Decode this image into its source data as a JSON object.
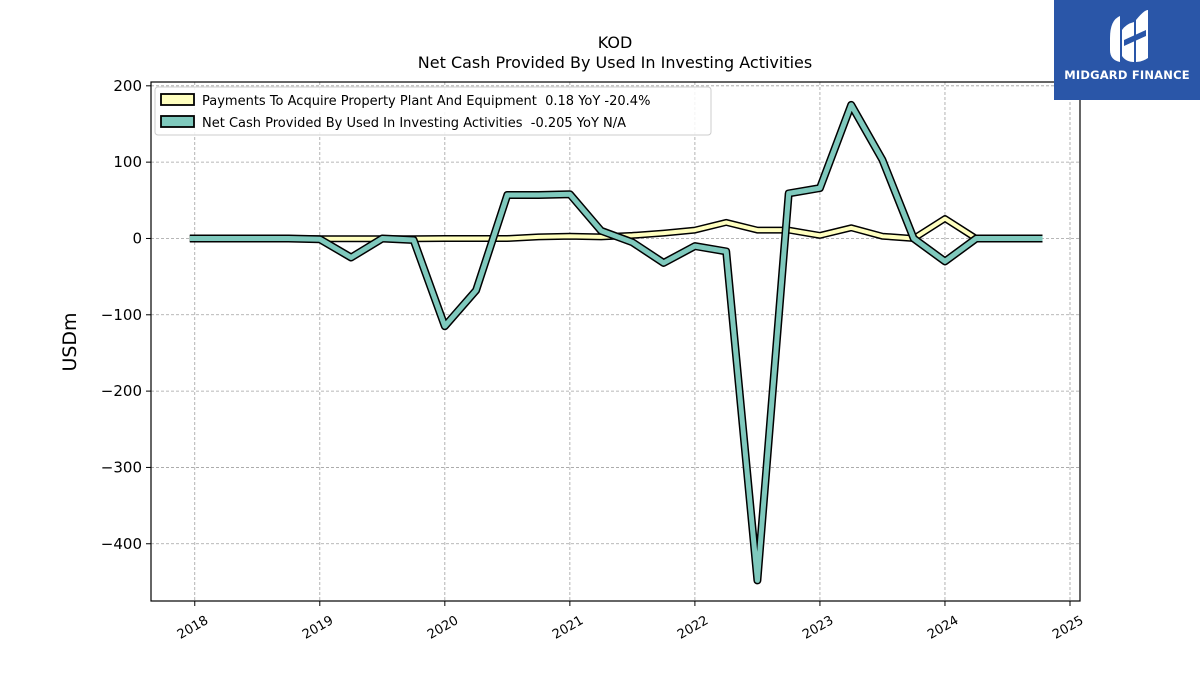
{
  "header": {
    "ticker": "KOD",
    "subtitle": "Net Cash Provided By Used In Investing Activities"
  },
  "logo": {
    "text": "MIDGARD FINANCE",
    "bg_color": "#2a56a8"
  },
  "chart_data": {
    "type": "line",
    "title": "KOD",
    "subtitle": "Net Cash Provided By Used In Investing Activities",
    "ylabel": "USDm",
    "xlabel": "",
    "ylim": [
      -475,
      205
    ],
    "xlim": [
      2017.65,
      2025.08
    ],
    "yticks": [
      200,
      100,
      0,
      -100,
      -200,
      -300,
      -400
    ],
    "ytick_labels": [
      "200",
      "100",
      "0",
      "−100",
      "−200",
      "−300",
      "−400"
    ],
    "xticks": [
      2018,
      2019,
      2020,
      2021,
      2022,
      2023,
      2024,
      2025
    ],
    "xtick_labels": [
      "2018",
      "2019",
      "2020",
      "2021",
      "2022",
      "2023",
      "2024",
      "2025"
    ],
    "grid": true,
    "legend_position": "top-left",
    "series": [
      {
        "name": "Payments To Acquire Property Plant And Equipment  0.18 YoY -20.4%",
        "color": "#ffffbf",
        "x": [
          2017.96,
          2018.75,
          2019.0,
          2019.25,
          2019.5,
          2019.75,
          2020.0,
          2020.25,
          2020.5,
          2020.75,
          2021.0,
          2021.25,
          2021.5,
          2021.75,
          2022.0,
          2022.25,
          2022.5,
          2022.75,
          2023.0,
          2023.25,
          2023.5,
          2023.75,
          2024.0,
          2024.25,
          2024.5,
          2024.78
        ],
        "values": [
          0,
          0,
          -0.5,
          -0.5,
          -0.5,
          -0.5,
          0,
          0,
          0,
          2,
          3,
          2,
          4,
          7,
          11,
          21,
          11,
          11,
          4,
          14,
          3,
          0,
          26,
          0,
          0,
          0
        ]
      },
      {
        "name": "Net Cash Provided By Used In Investing Activities  -0.205 YoY N/A",
        "color": "#7fc9bd",
        "x": [
          2017.96,
          2018.75,
          2019.0,
          2019.25,
          2019.5,
          2019.75,
          2020.0,
          2020.25,
          2020.5,
          2020.75,
          2021.0,
          2021.25,
          2021.5,
          2021.75,
          2022.0,
          2022.25,
          2022.5,
          2022.75,
          2023.0,
          2023.25,
          2023.5,
          2023.75,
          2024.0,
          2024.25,
          2024.5,
          2024.78
        ],
        "values": [
          0,
          0,
          -1,
          -25,
          0,
          -2,
          -115,
          -68,
          57,
          57,
          58,
          10,
          -5,
          -32,
          -10,
          -17,
          -448,
          59,
          66,
          175,
          103,
          0,
          -30,
          0,
          0,
          0
        ]
      }
    ]
  }
}
